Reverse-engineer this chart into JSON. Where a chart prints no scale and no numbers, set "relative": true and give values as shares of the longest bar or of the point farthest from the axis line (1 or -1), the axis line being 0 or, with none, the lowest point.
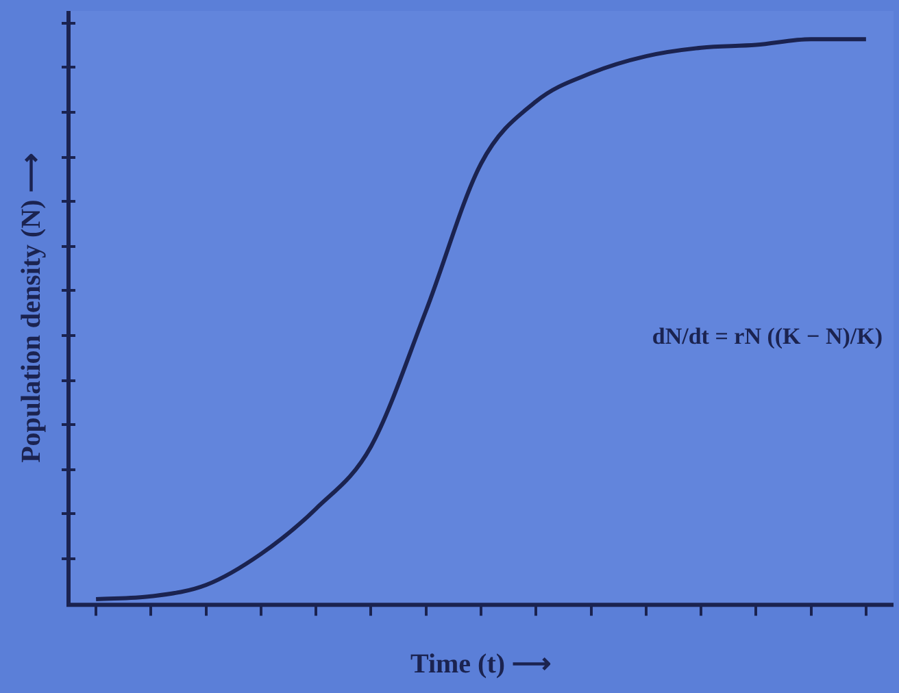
{
  "chart_data": {
    "type": "line",
    "xlabel": "Time (t) ⟶",
    "ylabel": "Population density (N) ⟶",
    "categories": [
      null,
      null,
      null,
      null,
      null,
      null,
      null,
      null,
      null,
      null,
      null,
      null,
      null,
      null,
      null
    ],
    "series": [
      {
        "color": "#1b2350",
        "values": [
          0.01,
          0.015,
          0.035,
          0.09,
          0.17,
          0.28,
          0.52,
          0.78,
          0.89,
          0.94,
          0.97,
          0.985,
          0.99,
          1,
          1
        ]
      }
    ],
    "relative": true,
    "legend": false,
    "grid": false,
    "marker": "none",
    "line_style": "solid",
    "annotations": [
      "dN/dt = rN ((K − N)/K)"
    ]
  }
}
